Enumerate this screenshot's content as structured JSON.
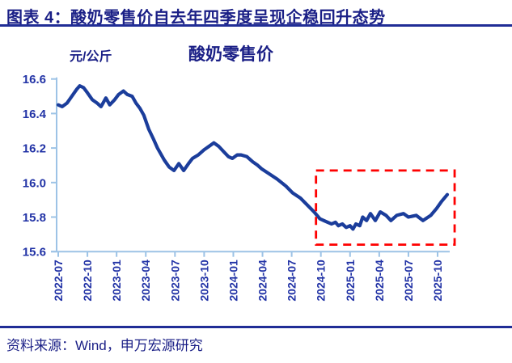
{
  "page": {
    "figure_title": "图表 4：酸奶零售价自去年四季度呈现企稳回升态势",
    "source_note": "资料来源：Wind，申万宏源研究"
  },
  "chart": {
    "title": "酸奶零售价",
    "unit_label": "元/公斤"
  },
  "colors": {
    "navy_text": "#1A1F86",
    "axis_label_blue": "#2233A6",
    "line_blue": "#1B3D9B",
    "axis_line_blue": "#9DC3E6",
    "highlight_red": "#FE0000",
    "divider_navy": "#202D96"
  },
  "chart_data": {
    "type": "line",
    "title": "酸奶零售价",
    "ylabel": "元/公斤",
    "ylim": [
      15.6,
      16.6
    ],
    "ytick_labels": [
      "16.6",
      "16.4",
      "16.2",
      "16.0",
      "15.8",
      "15.6"
    ],
    "xtick_labels": [
      "2022-07",
      "2022-10",
      "2023-01",
      "2023-04",
      "2023-07",
      "2023-10",
      "2024-01",
      "2024-04",
      "2024-07",
      "2024-10",
      "2025-01",
      "2025-04",
      "2025-07",
      "2025-10"
    ],
    "xtick_interval_months": 3,
    "x_unit": "months_since_2022-07",
    "grid": false,
    "legend_position": "title-top-center",
    "series": [
      {
        "name": "酸奶零售价",
        "points": [
          [
            0,
            16.45
          ],
          [
            0.4,
            16.44
          ],
          [
            0.9,
            16.46
          ],
          [
            1.4,
            16.5
          ],
          [
            1.9,
            16.54
          ],
          [
            2.2,
            16.56
          ],
          [
            2.6,
            16.55
          ],
          [
            3.0,
            16.52
          ],
          [
            3.5,
            16.48
          ],
          [
            4.0,
            16.46
          ],
          [
            4.4,
            16.44
          ],
          [
            4.9,
            16.49
          ],
          [
            5.3,
            16.45
          ],
          [
            5.8,
            16.48
          ],
          [
            6.2,
            16.51
          ],
          [
            6.7,
            16.53
          ],
          [
            7.1,
            16.51
          ],
          [
            7.6,
            16.5
          ],
          [
            8.0,
            16.46
          ],
          [
            8.4,
            16.43
          ],
          [
            8.8,
            16.39
          ],
          [
            9.3,
            16.31
          ],
          [
            9.8,
            16.25
          ],
          [
            10.2,
            16.2
          ],
          [
            10.9,
            16.13
          ],
          [
            11.4,
            16.09
          ],
          [
            11.9,
            16.07
          ],
          [
            12.4,
            16.11
          ],
          [
            12.9,
            16.07
          ],
          [
            13.4,
            16.11
          ],
          [
            13.8,
            16.14
          ],
          [
            14.4,
            16.16
          ],
          [
            15.0,
            16.19
          ],
          [
            15.5,
            16.21
          ],
          [
            16.0,
            16.23
          ],
          [
            16.5,
            16.21
          ],
          [
            17.0,
            16.18
          ],
          [
            17.5,
            16.15
          ],
          [
            17.9,
            16.14
          ],
          [
            18.4,
            16.16
          ],
          [
            18.8,
            16.16
          ],
          [
            19.4,
            16.15
          ],
          [
            20.0,
            16.12
          ],
          [
            20.5,
            16.1
          ],
          [
            20.9,
            16.08
          ],
          [
            21.7,
            16.05
          ],
          [
            22.5,
            16.02
          ],
          [
            23.4,
            15.98
          ],
          [
            24.1,
            15.94
          ],
          [
            24.9,
            15.91
          ],
          [
            25.6,
            15.87
          ],
          [
            26.3,
            15.83
          ],
          [
            26.9,
            15.79
          ],
          [
            27.3,
            15.78
          ],
          [
            27.7,
            15.77
          ],
          [
            28.1,
            15.76
          ],
          [
            28.5,
            15.77
          ],
          [
            28.8,
            15.75
          ],
          [
            29.2,
            15.76
          ],
          [
            29.6,
            15.74
          ],
          [
            30.0,
            15.75
          ],
          [
            30.3,
            15.73
          ],
          [
            30.6,
            15.76
          ],
          [
            31.0,
            15.75
          ],
          [
            31.3,
            15.8
          ],
          [
            31.7,
            15.78
          ],
          [
            32.1,
            15.82
          ],
          [
            32.6,
            15.78
          ],
          [
            33.1,
            15.83
          ],
          [
            33.7,
            15.81
          ],
          [
            34.2,
            15.78
          ],
          [
            34.8,
            15.81
          ],
          [
            35.5,
            15.82
          ],
          [
            36.0,
            15.8
          ],
          [
            36.8,
            15.81
          ],
          [
            37.5,
            15.78
          ],
          [
            38.3,
            15.81
          ],
          [
            38.9,
            15.85
          ],
          [
            39.4,
            15.89
          ],
          [
            40.0,
            15.93
          ]
        ]
      }
    ],
    "highlight_box": {
      "style": "red-dashed",
      "x_months": [
        26.5,
        40.75
      ],
      "y_values": [
        15.64,
        16.07
      ]
    }
  }
}
